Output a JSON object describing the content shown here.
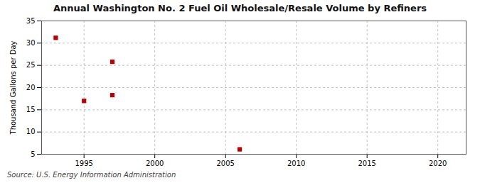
{
  "chart_data": {
    "type": "scatter",
    "title": "Annual Washington No. 2 Fuel Oil Wholesale/Resale Volume by Refiners",
    "ylabel": "Thousand Gallons per Day",
    "source": "Source: U.S. Energy Information Administration",
    "x": [
      1993,
      1995,
      1997,
      1997,
      2006
    ],
    "values": [
      31.2,
      17.0,
      18.3,
      25.8,
      6.1
    ],
    "color": "#bb0000",
    "marker": "square",
    "xlim": [
      1992,
      2022
    ],
    "ylim": [
      5,
      35
    ],
    "xticks": [
      1995,
      2000,
      2005,
      2010,
      2015,
      2020
    ],
    "yticks": [
      5,
      10,
      15,
      20,
      25,
      30,
      35
    ],
    "grid": true
  }
}
